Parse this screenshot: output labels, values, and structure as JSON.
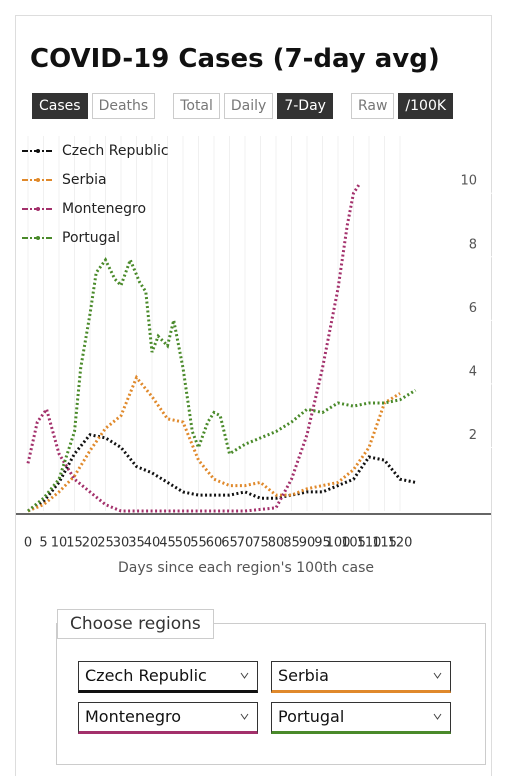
{
  "title": "COVID-19 Cases (7-day avg)",
  "button_groups": [
    [
      {
        "label": "Cases",
        "selected": true
      },
      {
        "label": "Deaths",
        "selected": false
      }
    ],
    [
      {
        "label": "Total",
        "selected": false
      },
      {
        "label": "Daily",
        "selected": false
      },
      {
        "label": "7-Day",
        "selected": true
      }
    ],
    [
      {
        "label": "Raw",
        "selected": false
      },
      {
        "label": "/100K",
        "selected": true
      }
    ]
  ],
  "chart_data": {
    "type": "line",
    "x_label": "Days since each region's 100th case",
    "xlim": [
      0,
      150
    ],
    "xticks": [
      0,
      5,
      10,
      15,
      20,
      25,
      30,
      35,
      40,
      45,
      50,
      55,
      60,
      65,
      70,
      75,
      80,
      85,
      90,
      95,
      100,
      105,
      110,
      115,
      120
    ],
    "ylim": [
      0,
      11.8
    ],
    "yticks": [
      2,
      4,
      6,
      8,
      10
    ],
    "grid": true,
    "legend": "top-left",
    "series": [
      {
        "name": "Czech Republic",
        "color": "#111111",
        "x": [
          0,
          5,
          10,
          15,
          20,
          25,
          30,
          35,
          40,
          45,
          50,
          55,
          60,
          65,
          70,
          75,
          80,
          85,
          90,
          95,
          100,
          105,
          110,
          115,
          120,
          125
        ],
        "values": [
          0,
          0.3,
          0.9,
          1.8,
          2.4,
          2.3,
          2.0,
          1.4,
          1.2,
          0.9,
          0.6,
          0.5,
          0.5,
          0.5,
          0.6,
          0.4,
          0.4,
          0.5,
          0.6,
          0.6,
          0.8,
          1.0,
          1.7,
          1.6,
          1.0,
          0.9
        ]
      },
      {
        "name": "Serbia",
        "color": "#e0892b",
        "x": [
          0,
          5,
          10,
          15,
          20,
          25,
          30,
          35,
          40,
          45,
          50,
          55,
          60,
          65,
          70,
          75,
          80,
          85,
          90,
          95,
          100,
          105,
          110,
          115,
          120
        ],
        "values": [
          0,
          0.2,
          0.6,
          1.1,
          1.9,
          2.6,
          3.0,
          4.2,
          3.6,
          2.9,
          2.8,
          1.6,
          1.0,
          0.8,
          0.8,
          0.9,
          0.5,
          0.5,
          0.7,
          0.8,
          0.9,
          1.3,
          2.0,
          3.4,
          3.7
        ]
      },
      {
        "name": "Montenegro",
        "color": "#a3306b",
        "x": [
          0,
          3,
          6,
          10,
          15,
          20,
          25,
          30,
          40,
          50,
          60,
          70,
          80,
          85,
          90,
          95,
          100,
          103,
          105,
          107
        ],
        "values": [
          1.5,
          2.8,
          3.2,
          1.8,
          1.0,
          0.6,
          0.2,
          0,
          0,
          0,
          0,
          0,
          0.1,
          1.0,
          2.4,
          4.5,
          7.0,
          9.0,
          10.0,
          10.3
        ]
      },
      {
        "name": "Portugal",
        "color": "#4a8a2a",
        "x": [
          0,
          5,
          10,
          15,
          17,
          20,
          22,
          25,
          28,
          30,
          33,
          36,
          38,
          40,
          42,
          45,
          47,
          50,
          53,
          55,
          58,
          60,
          62,
          65,
          70,
          75,
          80,
          85,
          90,
          95,
          100,
          105,
          110,
          115,
          120,
          125
        ],
        "values": [
          0,
          0.4,
          1.0,
          2.5,
          4.5,
          6.2,
          7.5,
          7.9,
          7.3,
          7.1,
          7.9,
          7.2,
          6.9,
          5.0,
          5.5,
          5.2,
          6.0,
          4.5,
          2.5,
          2.0,
          2.8,
          3.1,
          3.0,
          1.8,
          2.1,
          2.3,
          2.5,
          2.8,
          3.2,
          3.1,
          3.4,
          3.3,
          3.4,
          3.4,
          3.5,
          3.8
        ]
      }
    ]
  },
  "region_picker": {
    "legend": "Choose regions",
    "selects": [
      "Czech Republic",
      "Serbia",
      "Montenegro",
      "Portugal"
    ]
  }
}
